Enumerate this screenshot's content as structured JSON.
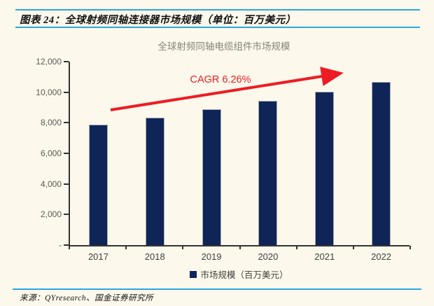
{
  "page": {
    "background_color": "#FCF8EB",
    "accent_blue": "#2BA7E0"
  },
  "header": {
    "title": "图表 24：全球射频同轴连接器市场规模（单位：百万美元）"
  },
  "chart_data": {
    "type": "bar",
    "title": "全球射频同轴电缆组件市场规模",
    "categories": [
      "2017",
      "2018",
      "2019",
      "2020",
      "2021",
      "2022"
    ],
    "series": [
      {
        "name": "市场规模（百万美元）",
        "values": [
          7860,
          8350,
          8880,
          9430,
          10050,
          10660
        ]
      }
    ],
    "ylim": [
      0,
      12000
    ],
    "ytick_step": 2000,
    "ytick_labels": [
      "-",
      "2,000",
      "4,000",
      "6,000",
      "8,000",
      "10,000",
      "12,000"
    ],
    "xlabel": "",
    "ylabel": "",
    "grid": false,
    "legend_position": "bottom",
    "bar_color": "#0F2557",
    "axis_color": "#333333",
    "annotation": {
      "text": "CAGR 6.26%",
      "color": "#ED1C24"
    }
  },
  "legend": {
    "label": "市场规模（百万美元）",
    "swatch_color": "#0F2557"
  },
  "footer": {
    "source": "来源：QYresearch、国金证券研究所"
  }
}
